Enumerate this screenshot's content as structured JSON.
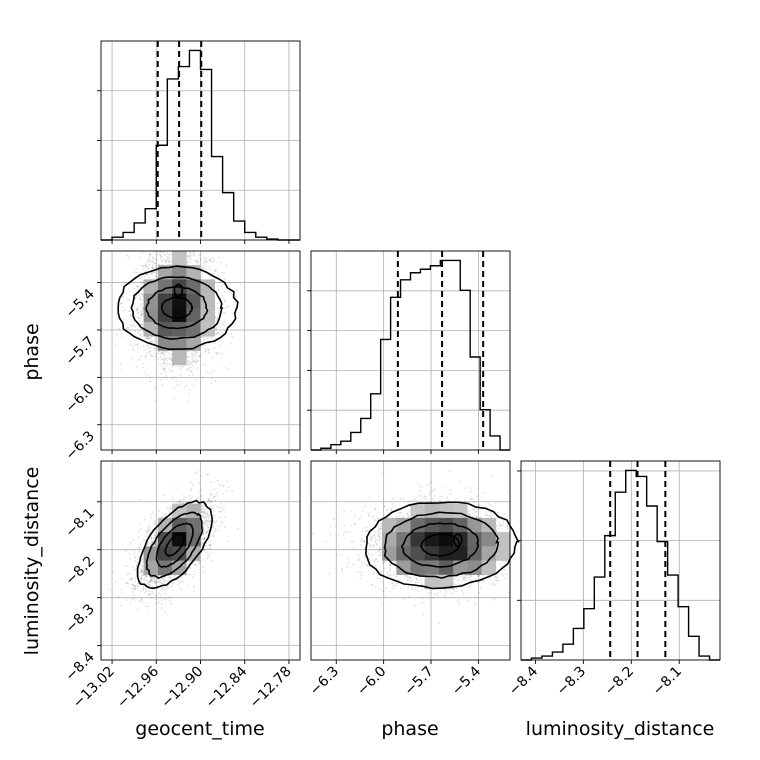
{
  "chart_data": {
    "type": "corner",
    "parameters": [
      {
        "name": "geocent_time",
        "range": [
          -13.035,
          -12.765
        ],
        "ticks": [
          -13.02,
          -12.96,
          -12.9,
          -12.84,
          -12.78
        ],
        "tick_labels": [
          "−13.02",
          "−12.96",
          "−12.90",
          "−12.84",
          "−12.78"
        ],
        "quantiles": [
          -12.958,
          -12.929,
          -12.899
        ],
        "hist_bins": [
          0,
          3,
          8,
          18,
          33,
          100,
          170,
          183,
          200,
          180,
          88,
          50,
          20,
          8,
          3,
          1,
          0,
          0
        ],
        "hist_yticks_fraction": [
          0.25,
          0.5,
          0.75
        ]
      },
      {
        "name": "phase",
        "range": [
          -6.46,
          -5.2
        ],
        "ticks": [
          -6.3,
          -6.0,
          -5.7,
          -5.4
        ],
        "tick_labels": [
          "−6.3",
          "−6.0",
          "−5.7",
          "−5.4"
        ],
        "quantiles": [
          -5.91,
          -5.63,
          -5.37
        ],
        "hist_bins": [
          0,
          1,
          3,
          5,
          10,
          18,
          32,
          63,
          87,
          97,
          101,
          103,
          105,
          108,
          108,
          91,
          53,
          23,
          8,
          0
        ],
        "hist_yticks_fraction": [
          0.2,
          0.4,
          0.6,
          0.8
        ]
      },
      {
        "name": "luminosity_distance",
        "range": [
          -8.43,
          -8.015
        ],
        "ticks": [
          -8.4,
          -8.3,
          -8.2,
          -8.1
        ],
        "tick_labels": [
          "−8.4",
          "−8.3",
          "−8.2",
          "−8.1"
        ],
        "quantiles": [
          -8.244,
          -8.187,
          -8.129
        ],
        "hist_bins": [
          0,
          1,
          2,
          4,
          8,
          16,
          26,
          42,
          63,
          85,
          96,
          93,
          78,
          60,
          43,
          27,
          12,
          2,
          0
        ],
        "hist_yticks_fraction": [
          0.3,
          0.6,
          0.95
        ]
      }
    ],
    "pairs": [
      {
        "x": "geocent_time",
        "y": "phase",
        "mean": [
          -12.932,
          -5.56
        ],
        "std": [
          0.028,
          0.19
        ],
        "corr": 0.0,
        "secondary_mode": [
          -12.93,
          -5.45
        ]
      },
      {
        "x": "geocent_time",
        "y": "luminosity_distance",
        "mean": [
          -12.935,
          -8.19
        ],
        "std": [
          0.025,
          0.045
        ],
        "corr": 0.6
      },
      {
        "x": "phase",
        "y": "luminosity_distance",
        "mean": [
          -5.64,
          -8.19
        ],
        "std": [
          0.24,
          0.045
        ],
        "corr": 0.05,
        "secondary_mode": [
          -5.53,
          -8.18
        ]
      }
    ],
    "contour_levels": [
      0.118,
      0.393,
      0.675,
      0.865
    ],
    "grid": true
  }
}
